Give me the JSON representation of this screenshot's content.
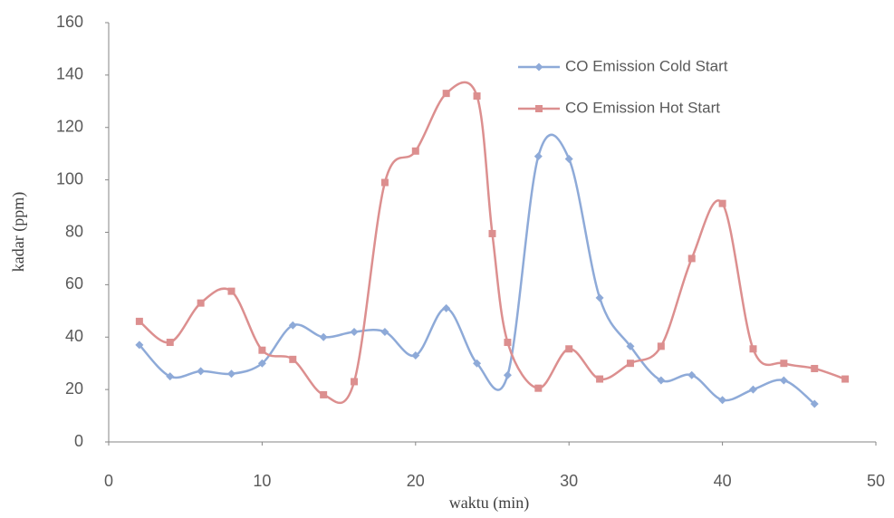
{
  "chart_data": {
    "type": "line",
    "x_label": "waktu (min)",
    "y_label": "kadar (ppm)",
    "xlim": [
      0,
      50
    ],
    "xticks": [
      0,
      10,
      20,
      30,
      40,
      50
    ],
    "ylim": [
      0,
      160
    ],
    "yticks": [
      0,
      20,
      40,
      60,
      80,
      100,
      120,
      140,
      160
    ],
    "legend": "upper right",
    "series": [
      {
        "name": "CO Emission Cold Start",
        "color": "#8eaad8",
        "marker": "diamond",
        "x": [
          2,
          4,
          6,
          8,
          10,
          12,
          14,
          16,
          18,
          20,
          22,
          24,
          26,
          28,
          30,
          32,
          34,
          36,
          38,
          40,
          42,
          44,
          46
        ],
        "values": [
          37,
          25,
          27,
          26,
          30,
          44.5,
          40,
          42,
          42,
          33,
          51,
          30,
          25.5,
          109,
          108,
          55,
          36.5,
          23.5,
          25.5,
          16,
          20,
          23.5,
          14.5
        ]
      },
      {
        "name": "CO Emission Hot Start",
        "color": "#dc8f8f",
        "marker": "square",
        "x": [
          2,
          4,
          6,
          8,
          10,
          12,
          14,
          16,
          18,
          20,
          22,
          24,
          25,
          26,
          28,
          30,
          32,
          34,
          36,
          38,
          40,
          42,
          44,
          46,
          48
        ],
        "values": [
          46,
          38,
          53,
          57.5,
          35,
          31.5,
          18,
          23,
          99,
          111,
          133,
          132,
          79.5,
          38,
          20.5,
          35.5,
          24,
          30,
          36.5,
          70,
          91,
          35.5,
          30,
          28,
          24
        ]
      }
    ]
  }
}
